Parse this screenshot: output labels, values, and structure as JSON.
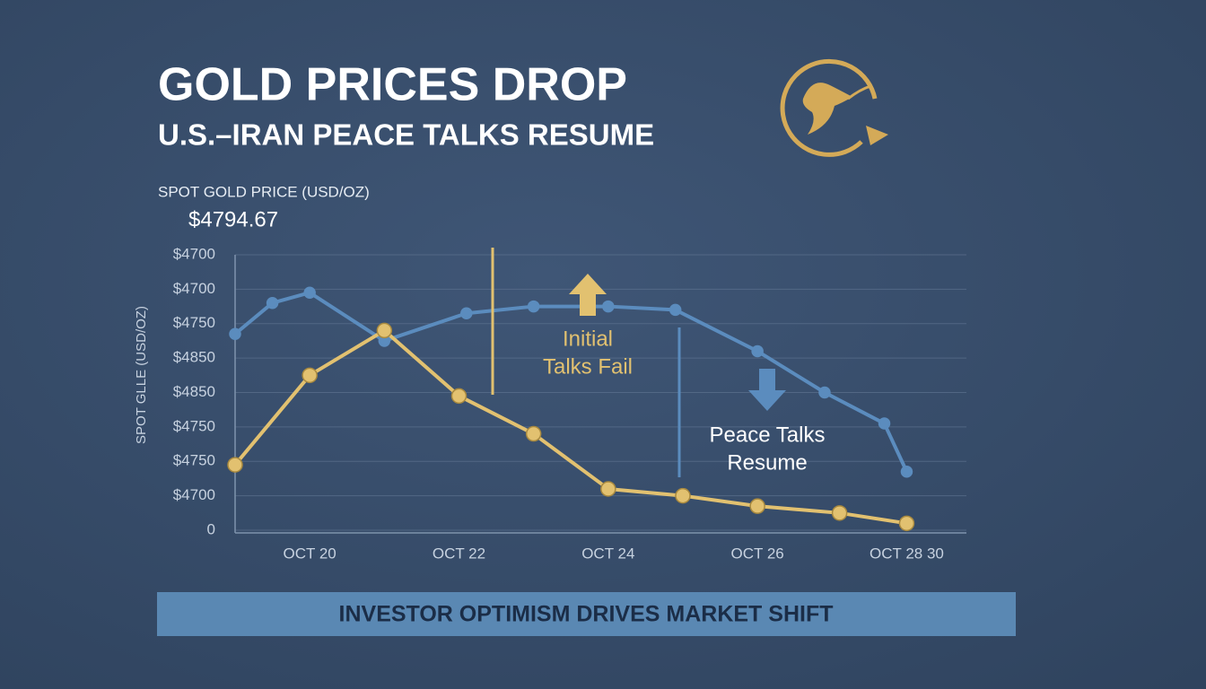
{
  "chart_data": {
    "type": "line",
    "title": "GOLD PRICES DROP",
    "subtitle": "U.S.–IRAN PEACE TALKS RESUME",
    "price_label": "SPOT GOLD PRICE (USD/OZ)",
    "price_value": "$4794.67",
    "y_axis_label": "SPOT GLLE (USD/OZ)",
    "annotations": [
      [
        "Initial",
        "Talks Fail"
      ],
      [
        "Peace Talks",
        "Resume"
      ]
    ],
    "banner": "INVESTOR OPTIMISM DRIVES MARKET SHIFT",
    "xlim": [
      19,
      28.8
    ],
    "xticks": [
      {
        "value": 20,
        "label": "OCT 20"
      },
      {
        "value": 22,
        "label": "OCT 22"
      },
      {
        "value": 24,
        "label": "OCT 24"
      },
      {
        "value": 26,
        "label": "OCT 26"
      },
      {
        "value": 28,
        "label": "OCT 28 30"
      }
    ],
    "ylim": [
      0,
      8
    ],
    "yticks": [
      0,
      {
        "value": 1,
        "label": "$4700"
      },
      {
        "value": 2,
        "label": "$4750"
      },
      {
        "value": 3,
        "label": "$4750"
      },
      {
        "value": 4,
        "label": "$4850"
      },
      {
        "value": 5,
        "label": "$4850"
      },
      {
        "value": 6,
        "label": "$4750"
      },
      {
        "value": 7,
        "label": "$4700"
      },
      {
        "value": 8,
        "label": "$4700"
      }
    ],
    "grid": true,
    "series": [
      {
        "color": "#5b8cbe",
        "x": [
          19.0,
          19.5,
          20.0,
          21.0,
          22.1,
          23.0,
          24.0,
          24.9,
          26.0,
          26.9,
          27.7,
          28.0
        ],
        "values": [
          5.7,
          6.6,
          6.9,
          5.5,
          6.3,
          6.5,
          6.5,
          6.4,
          5.2,
          4.0,
          3.1,
          1.7
        ]
      },
      {
        "color": "#e2c170",
        "x": [
          19.0,
          20.0,
          21.0,
          22.0,
          23.0,
          24.0,
          25.0,
          26.0,
          27.1,
          28.0
        ],
        "values": [
          1.9,
          4.5,
          5.8,
          3.9,
          2.8,
          1.2,
          1.0,
          0.7,
          0.5,
          0.2
        ]
      }
    ]
  }
}
